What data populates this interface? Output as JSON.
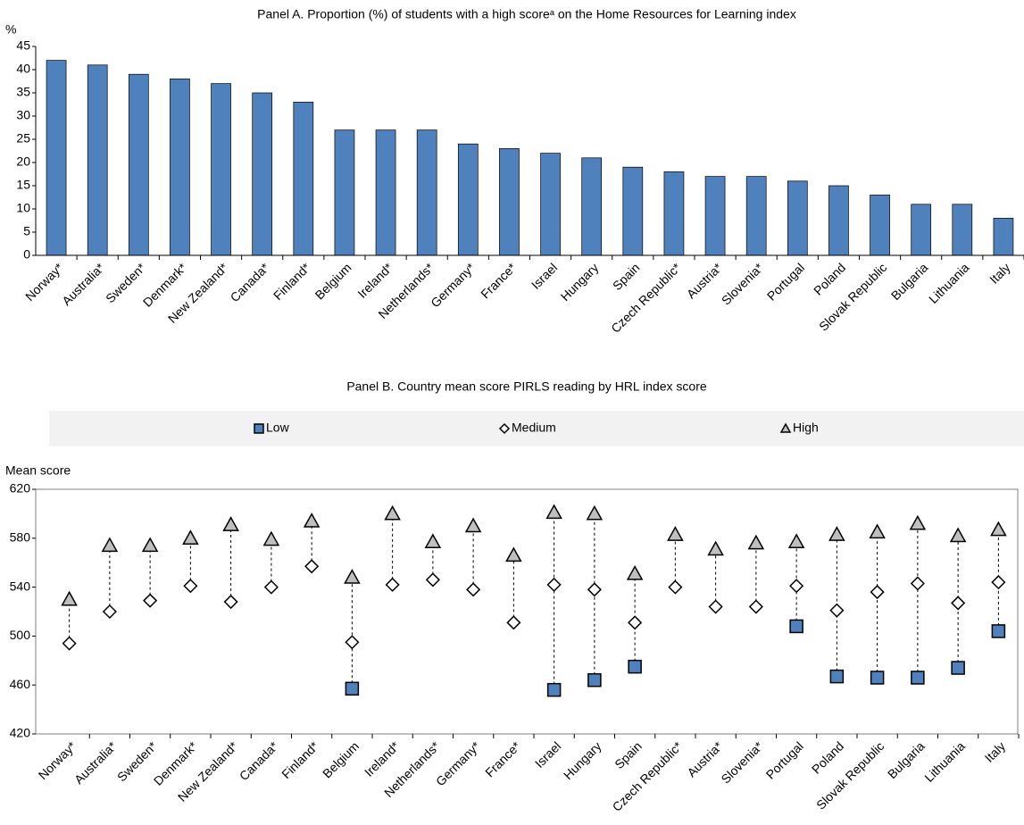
{
  "chart_data": [
    {
      "type": "bar",
      "title": "Panel A. Proportion (%) of students with a high scoreᵃ on the Home Resources for Learning index",
      "y_label": "%",
      "categories": [
        "Norway*",
        "Australia*",
        "Sweden*",
        "Denmark*",
        "New Zealand*",
        "Canada*",
        "Finland*",
        "Belgium",
        "Ireland*",
        "Netherlands*",
        "Germany*",
        "France*",
        "Israel",
        "Hungary",
        "Spain",
        "Czech Republic*",
        "Austria*",
        "Slovenia*",
        "Portugal",
        "Poland",
        "Slovak Republic",
        "Bulgaria",
        "Lithuania",
        "Italy"
      ],
      "values": [
        42,
        41,
        39,
        38,
        37,
        35,
        33,
        27,
        27,
        27,
        24,
        23,
        22,
        21,
        19,
        18,
        17,
        17,
        16,
        15,
        13,
        11,
        11,
        8
      ],
      "color": "#4f81bd",
      "ylim": [
        0,
        45
      ],
      "yticks": [
        0,
        5,
        10,
        15,
        20,
        25,
        30,
        35,
        40,
        45
      ]
    },
    {
      "type": "dot",
      "title": "Panel B. Country mean score PIRLS reading by HRL index score",
      "y_label": "Mean score",
      "categories": [
        "Norway*",
        "Australia*",
        "Sweden*",
        "Denmark*",
        "New Zealand*",
        "Canada*",
        "Finland*",
        "Belgium",
        "Ireland*",
        "Netherlands*",
        "Germany*",
        "France*",
        "Israel",
        "Hungary",
        "Spain",
        "Czech Republic*",
        "Austria*",
        "Slovenia*",
        "Portugal",
        "Poland",
        "Slovak Republic",
        "Bulgaria",
        "Lithuania",
        "Italy"
      ],
      "series": [
        {
          "name": "Low",
          "color": "#4f81bd",
          "marker": "square",
          "values": [
            null,
            null,
            null,
            null,
            null,
            null,
            null,
            457,
            null,
            null,
            null,
            null,
            456,
            464,
            475,
            null,
            null,
            null,
            508,
            467,
            466,
            466,
            474,
            504
          ]
        },
        {
          "name": "Medium",
          "color": "#ffffff",
          "marker": "diamond",
          "values": [
            494,
            520,
            529,
            541,
            528,
            540,
            557,
            495,
            542,
            546,
            538,
            511,
            542,
            538,
            511,
            540,
            524,
            524,
            541,
            521,
            536,
            543,
            527,
            544
          ]
        },
        {
          "name": "High",
          "color": "#bfbfbf",
          "marker": "triangle",
          "values": [
            530,
            574,
            574,
            580,
            591,
            579,
            594,
            548,
            600,
            577,
            590,
            566,
            601,
            600,
            551,
            583,
            571,
            576,
            577,
            583,
            585,
            592,
            582,
            587
          ]
        }
      ],
      "ylim": [
        420,
        620
      ],
      "yticks": [
        420,
        460,
        500,
        540,
        580,
        620
      ]
    }
  ]
}
